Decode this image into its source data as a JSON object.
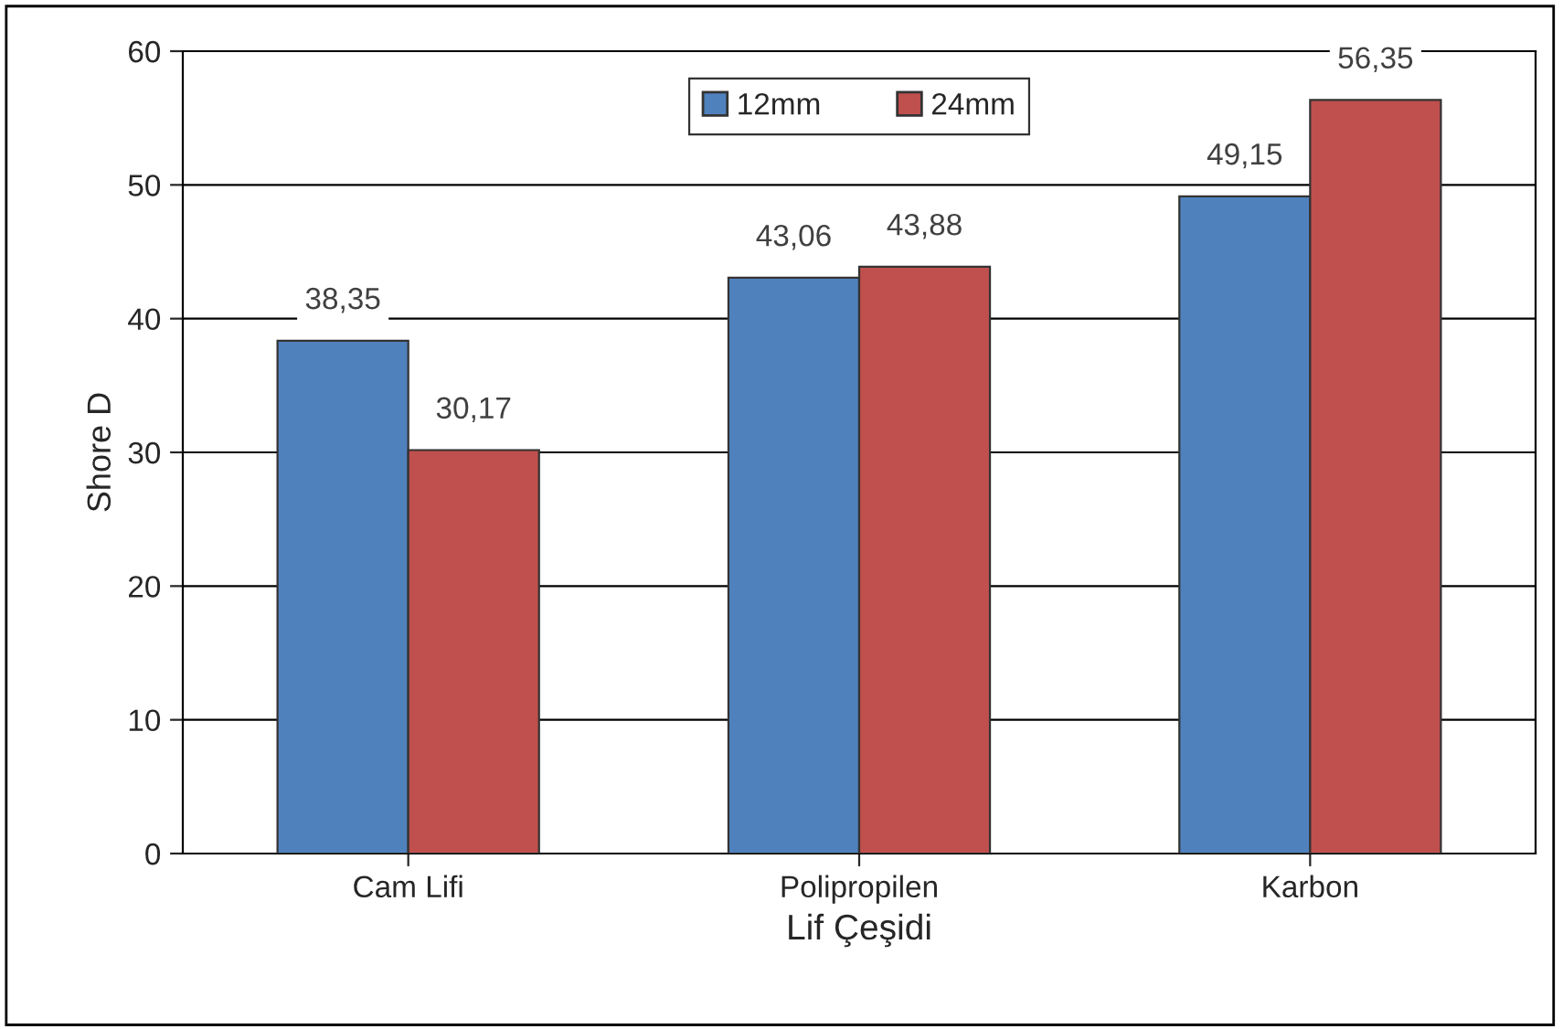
{
  "chart_data": {
    "type": "bar",
    "xlabel": "Lif Çeşidi",
    "ylabel": "Shore D",
    "categories": [
      "Cam Lifi",
      "Polipropilen",
      "Karbon"
    ],
    "series": [
      {
        "name": "12mm",
        "color": "#4f81bd",
        "values": [
          38.35,
          43.06,
          49.15
        ],
        "value_labels": [
          "38,35",
          "43,06",
          "49,15"
        ]
      },
      {
        "name": "24mm",
        "color": "#c0504d",
        "values": [
          30.17,
          43.88,
          56.35
        ],
        "value_labels": [
          "30,17",
          "43,88",
          "56,35"
        ]
      }
    ],
    "ylim": [
      0,
      60
    ],
    "yticks": [
      0,
      10,
      20,
      30,
      40,
      50,
      60
    ],
    "grid": "y",
    "legend": "top"
  }
}
